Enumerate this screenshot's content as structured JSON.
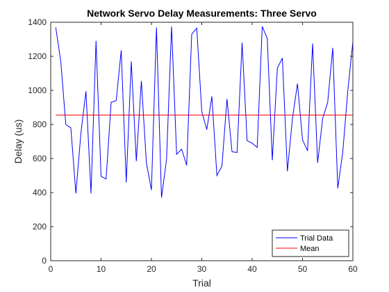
{
  "chart_data": {
    "type": "line",
    "title": "Network Servo Delay Measurements: Three Servo",
    "xlabel": "Trial",
    "ylabel": "Delay (us)",
    "xlim": [
      0,
      60
    ],
    "ylim": [
      0,
      1400
    ],
    "xticks": [
      0,
      10,
      20,
      30,
      40,
      50,
      60
    ],
    "yticks": [
      0,
      200,
      400,
      600,
      800,
      1000,
      1200,
      1400
    ],
    "grid": false,
    "legend": {
      "position": "bottom-right",
      "entries": [
        "Trial Data",
        "Mean"
      ]
    },
    "series": [
      {
        "name": "Trial Data",
        "color": "#0000ff",
        "x": [
          1,
          2,
          3,
          4,
          5,
          6,
          7,
          8,
          9,
          10,
          11,
          12,
          13,
          14,
          15,
          16,
          17,
          18,
          19,
          20,
          21,
          22,
          23,
          24,
          25,
          26,
          27,
          28,
          29,
          30,
          31,
          32,
          33,
          34,
          35,
          36,
          37,
          38,
          39,
          40,
          41,
          42,
          43,
          44,
          45,
          46,
          47,
          48,
          49,
          50,
          51,
          52,
          53,
          54,
          55,
          56,
          57,
          58,
          59,
          60
        ],
        "y": [
          1370,
          1170,
          800,
          780,
          395,
          750,
          995,
          395,
          1290,
          495,
          480,
          930,
          940,
          1235,
          460,
          1170,
          585,
          1055,
          575,
          415,
          1370,
          370,
          595,
          1375,
          625,
          655,
          560,
          1330,
          1365,
          875,
          770,
          965,
          500,
          555,
          950,
          640,
          635,
          1280,
          705,
          690,
          665,
          1375,
          1305,
          590,
          1130,
          1190,
          525,
          835,
          1040,
          710,
          645,
          1275,
          575,
          835,
          930,
          1250,
          425,
          640,
          1000,
          1285
        ]
      },
      {
        "name": "Mean",
        "color": "#ff0000",
        "x": [
          1,
          60
        ],
        "y": [
          855,
          855
        ]
      }
    ]
  }
}
